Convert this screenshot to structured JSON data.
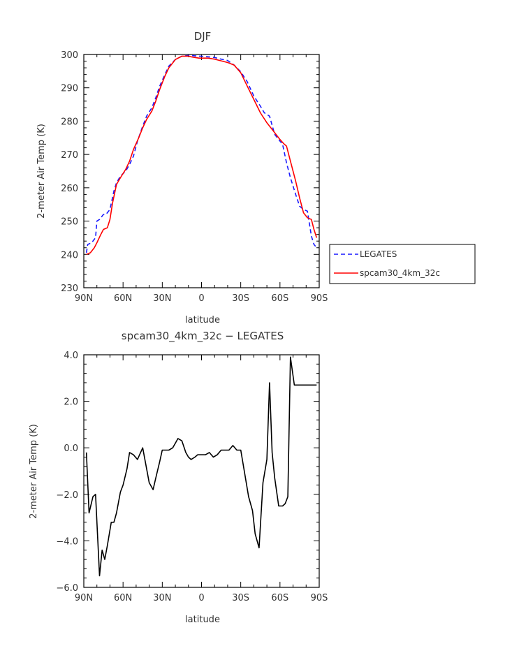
{
  "chart_data": [
    {
      "type": "line",
      "title": "DJF",
      "xlabel": "latitude",
      "ylabel": "2-meter Air Temp (K)",
      "xlim": [
        90,
        -90
      ],
      "ylim": [
        230,
        300
      ],
      "xtick_values": [
        90,
        60,
        30,
        0,
        -30,
        -60,
        -90
      ],
      "xtick_labels": [
        "90N",
        "60N",
        "30N",
        "0",
        "30S",
        "60S",
        "90S"
      ],
      "ytick_values": [
        230,
        240,
        250,
        260,
        270,
        280,
        290,
        300
      ],
      "ytick_labels": [
        "230",
        "240",
        "250",
        "260",
        "270",
        "280",
        "290",
        "300"
      ],
      "legend_position": "right",
      "series": [
        {
          "name": "LEGATES",
          "style": "dashed",
          "color": "#1a1aff",
          "x": [
            88,
            87,
            84,
            81,
            80,
            78,
            75,
            73,
            70,
            67,
            65,
            62,
            58,
            55,
            52,
            49,
            45,
            42,
            38,
            35,
            32,
            28,
            25,
            20,
            15,
            10,
            8,
            5,
            2,
            0,
            -5,
            -10,
            -15,
            -20,
            -25,
            -30,
            -35,
            -40,
            -45,
            -48,
            -52,
            -56,
            -59,
            -62,
            -65,
            -68,
            -72,
            -75,
            -78,
            -81,
            -84,
            -86,
            -88
          ],
          "y": [
            240.5,
            243,
            243.5,
            245,
            250,
            250.5,
            252,
            252,
            253.5,
            259,
            261.5,
            263.5,
            265,
            267,
            269.5,
            274,
            278.5,
            281.5,
            284,
            287,
            290.5,
            294,
            296.5,
            298.5,
            299.5,
            299.7,
            299.7,
            299.6,
            299.5,
            299.5,
            299.3,
            299.1,
            298.6,
            298.2,
            296.8,
            294.8,
            291.8,
            287.5,
            284.5,
            282.5,
            281.5,
            276,
            274.5,
            273,
            267.5,
            263,
            258,
            254.5,
            253.5,
            253,
            245.5,
            243,
            242
          ]
        },
        {
          "name": "spcam30_4km_32c",
          "style": "solid",
          "color": "#ff0000",
          "x": [
            88,
            85,
            82,
            80,
            77,
            75,
            72,
            70,
            68,
            65,
            62,
            58,
            55,
            52,
            48,
            45,
            42,
            38,
            35,
            32,
            28,
            25,
            20,
            15,
            10,
            8,
            5,
            2,
            0,
            -5,
            -10,
            -15,
            -20,
            -25,
            -30,
            -35,
            -40,
            -45,
            -50,
            -55,
            -60,
            -63,
            -65,
            -68,
            -72,
            -75,
            -78,
            -81,
            -84,
            -86,
            -88
          ],
          "y": [
            240,
            240.5,
            242,
            243.5,
            246,
            247.5,
            248,
            250.5,
            255.5,
            261,
            263,
            265.5,
            268,
            271.5,
            275,
            278,
            280.5,
            283,
            286,
            289.5,
            293.5,
            296,
            298.5,
            299.5,
            299.5,
            299.3,
            299.1,
            298.9,
            298.9,
            298.9,
            298.6,
            298.1,
            297.6,
            296.8,
            294.5,
            290.5,
            286.5,
            282.5,
            279.5,
            277,
            274.5,
            273.2,
            272.5,
            268,
            262,
            257,
            252.5,
            251,
            250.5,
            247.5,
            245
          ]
        }
      ]
    },
    {
      "type": "line",
      "title": "spcam30_4km_32c − LEGATES",
      "xlabel": "latitude",
      "ylabel": "2-meter Air Temp (K)",
      "xlim": [
        90,
        -90
      ],
      "ylim": [
        -6.0,
        4.0
      ],
      "xtick_values": [
        90,
        60,
        30,
        0,
        -30,
        -60,
        -90
      ],
      "xtick_labels": [
        "90N",
        "60N",
        "30N",
        "0",
        "30S",
        "60S",
        "90S"
      ],
      "ytick_values": [
        -6,
        -4,
        -2,
        0,
        2,
        4
      ],
      "ytick_labels": [
        "−6.0",
        "−4.0",
        "−2.0",
        "0.0",
        "2.0",
        "4.0"
      ],
      "series": [
        {
          "color": "#000000",
          "style": "solid",
          "x": [
            88,
            86,
            83,
            81,
            78,
            76,
            74,
            72,
            69,
            67,
            65,
            62,
            60,
            57,
            55,
            52,
            49,
            45,
            42,
            40,
            37,
            35,
            32,
            30,
            27,
            25,
            22,
            20,
            18,
            15,
            12,
            10,
            8,
            5,
            3,
            0,
            -3,
            -6,
            -9,
            -12,
            -15,
            -18,
            -21,
            -24,
            -27,
            -30,
            -33,
            -36,
            -39,
            -41,
            -44,
            -47,
            -50,
            -52,
            -54,
            -56,
            -59,
            -62,
            -64,
            -66,
            -68,
            -71,
            -73,
            -75,
            -78,
            -80,
            -82,
            -84,
            -86,
            -88
          ],
          "y": [
            -0.2,
            -2.8,
            -2.1,
            -2.0,
            -5.5,
            -4.4,
            -4.8,
            -4.2,
            -3.2,
            -3.2,
            -2.8,
            -1.9,
            -1.6,
            -0.9,
            -0.2,
            -0.3,
            -0.5,
            0.0,
            -0.9,
            -1.5,
            -1.8,
            -1.3,
            -0.6,
            -0.1,
            -0.1,
            -0.1,
            0.0,
            0.2,
            0.4,
            0.3,
            -0.2,
            -0.4,
            -0.5,
            -0.4,
            -0.3,
            -0.3,
            -0.3,
            -0.2,
            -0.4,
            -0.3,
            -0.1,
            -0.1,
            -0.1,
            0.1,
            -0.1,
            -0.1,
            -1.1,
            -2.1,
            -2.7,
            -3.7,
            -4.3,
            -1.5,
            -0.5,
            2.8,
            -0.2,
            -1.3,
            -2.5,
            -2.5,
            -2.4,
            -2.1,
            3.9,
            2.7,
            2.7,
            2.7,
            2.7,
            2.7,
            2.7,
            2.7,
            2.7,
            2.7
          ]
        }
      ]
    }
  ]
}
